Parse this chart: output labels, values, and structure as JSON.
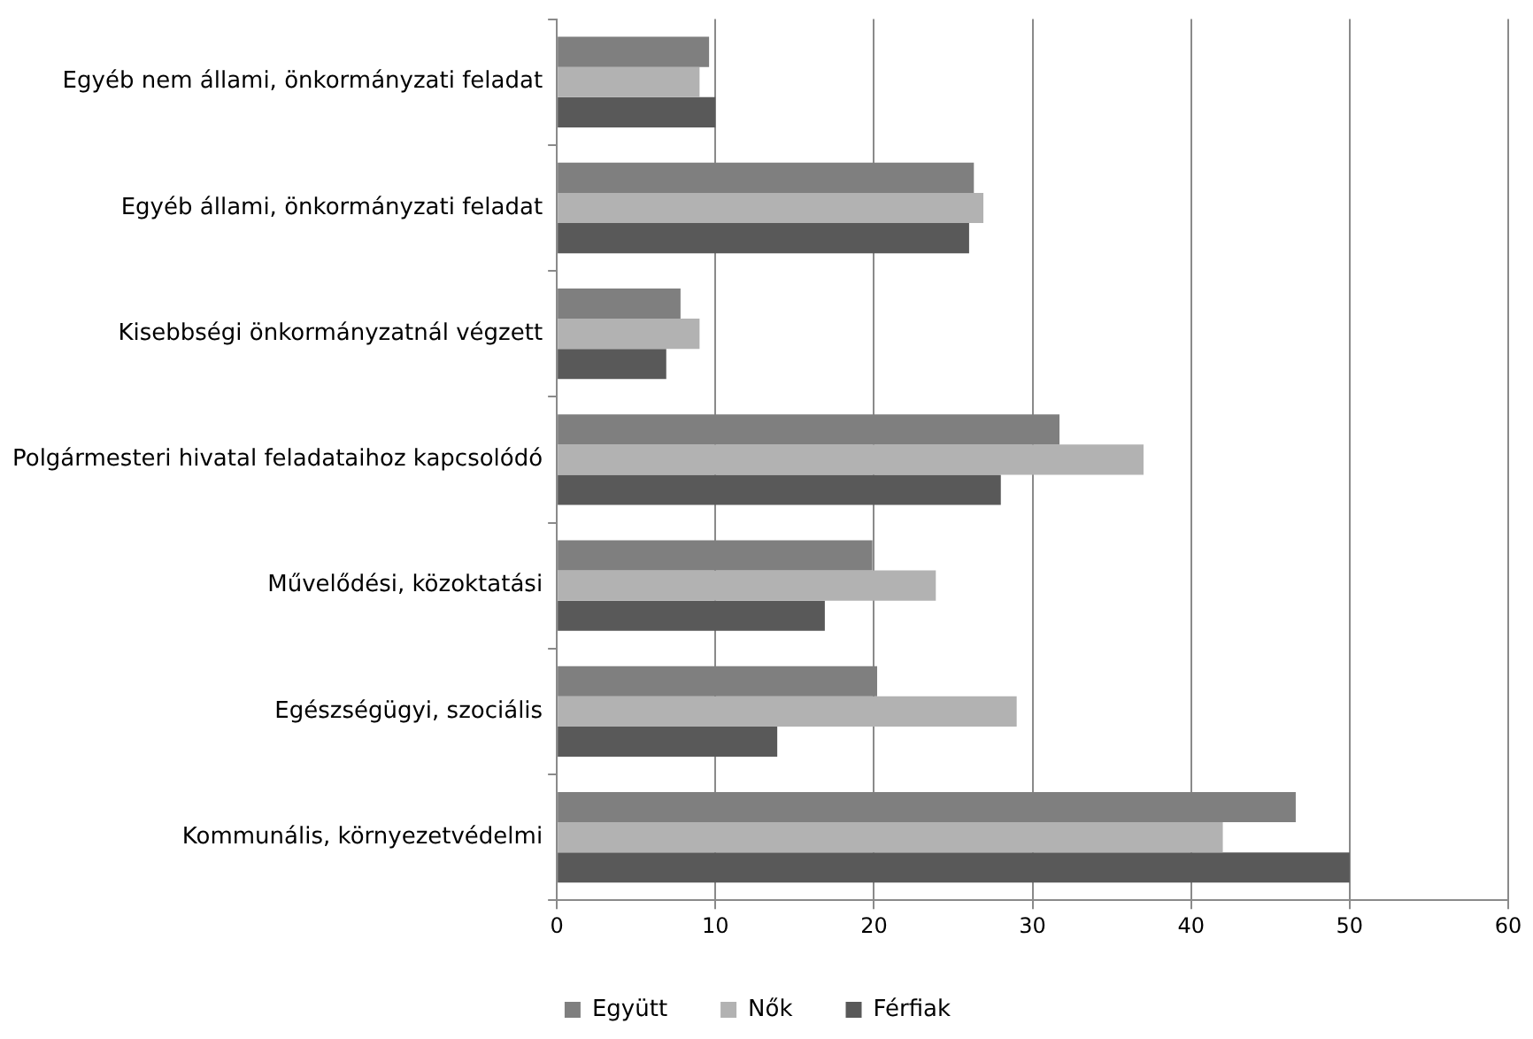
{
  "chart_data": {
    "type": "bar",
    "orientation": "horizontal",
    "categories": [
      "Egyéb nem állami, önkormányzati feladat",
      "Egyéb állami, önkormányzati feladat",
      "Kisebbségi önkormányzatnál végzett",
      "Polgármesteri hivatal feladataihoz kapcsolódó",
      "Művelődési, közoktatási",
      "Egészségügyi, szociális",
      "Kommunális, környezetvédelmi"
    ],
    "series": [
      {
        "name": "Együtt",
        "color": "#7f7f7f",
        "values": [
          9.6,
          26.3,
          7.8,
          31.7,
          19.9,
          20.2,
          46.6
        ]
      },
      {
        "name": "Nők",
        "color": "#b2b2b2",
        "values": [
          9.0,
          26.9,
          9.0,
          37.0,
          23.9,
          29.0,
          42.0
        ]
      },
      {
        "name": "Férfiak",
        "color": "#595959",
        "values": [
          10.0,
          26.0,
          6.9,
          28.0,
          16.9,
          13.9,
          50.0
        ]
      }
    ],
    "xlim": [
      0,
      60
    ],
    "xticks": [
      0,
      10,
      20,
      30,
      40,
      50,
      60
    ],
    "grid": "x",
    "legend": "bottom"
  }
}
